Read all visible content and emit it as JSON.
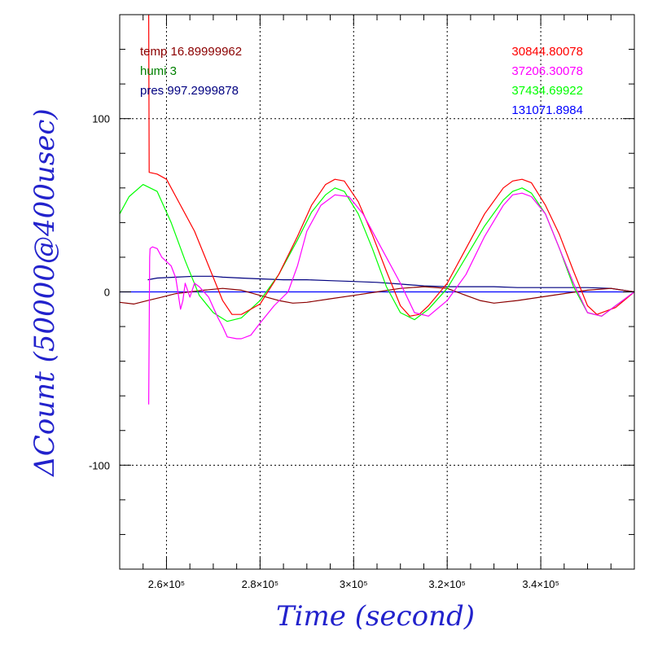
{
  "chart_data": {
    "type": "line",
    "xlabel": "Time (second)",
    "ylabel": "ΔCount (50000@400usec)",
    "xlim": [
      250000,
      360000
    ],
    "ylim": [
      -160,
      160
    ],
    "x_ticks": [
      260000,
      280000,
      300000,
      320000,
      340000
    ],
    "x_tick_labels": [
      "2.6×10⁵",
      "2.8×10⁵",
      "3×10⁵",
      "3.2×10⁵",
      "3.4×10⁵"
    ],
    "y_ticks": [
      -100,
      0,
      100
    ],
    "y_tick_labels": [
      "-100",
      "0",
      "100"
    ],
    "grid": true,
    "annotations_left": [
      {
        "text": "temp 16.89999962",
        "color": "#8b0000"
      },
      {
        "text": "humi 3",
        "color": "#008000"
      },
      {
        "text": "pres 997.2999878",
        "color": "#000080"
      }
    ],
    "annotations_right": [
      {
        "text": "30844.80078",
        "color": "#ff0000"
      },
      {
        "text": "37206.30078",
        "color": "#ff00ff"
      },
      {
        "text": "37434.69922",
        "color": "#00ff00"
      },
      {
        "text": "131071.8984",
        "color": "#0000ff"
      }
    ],
    "series": [
      {
        "color": "#0000ff",
        "x": [
          250000,
          255000,
          260000,
          265000,
          270000,
          275000,
          280000,
          285000,
          290000,
          295000,
          300000,
          305000,
          310000,
          315000,
          320000,
          325000,
          330000,
          335000,
          340000,
          345000,
          350000,
          355000,
          360000
        ],
        "y": [
          0,
          0,
          0,
          0,
          0,
          0,
          0,
          0,
          0,
          0,
          0,
          0,
          0,
          0,
          0,
          0,
          0,
          0,
          0,
          0,
          0,
          0,
          0
        ]
      },
      {
        "color": "#000080",
        "x": [
          256000,
          258000,
          262000,
          266000,
          270000,
          272000,
          276000,
          280000,
          285000,
          290000,
          295000,
          300000,
          305000,
          310000,
          315000,
          320000,
          325000,
          330000,
          335000,
          340000,
          345000,
          350000,
          355000,
          360000
        ],
        "y": [
          7,
          8,
          8.5,
          9,
          9,
          8.5,
          8,
          7.5,
          7,
          7,
          6.5,
          6,
          5.5,
          4.5,
          3.5,
          3,
          3,
          3,
          2.5,
          2.5,
          2.5,
          2.5,
          2,
          0
        ]
      },
      {
        "color": "#8b0000",
        "x": [
          250000,
          253000,
          256000,
          259000,
          262000,
          265000,
          268000,
          272000,
          276000,
          280000,
          284000,
          287000,
          290000,
          295000,
          300000,
          305000,
          310000,
          315000,
          320000,
          324000,
          327000,
          330000,
          335000,
          340000,
          345000,
          350000,
          355000,
          360000
        ],
        "y": [
          -6,
          -7,
          -5,
          -3,
          -1,
          0,
          1,
          2,
          1,
          -2,
          -5,
          -6.5,
          -6,
          -4,
          -2,
          0,
          2,
          3,
          2,
          -2,
          -5,
          -6.5,
          -5,
          -3,
          -1,
          1,
          2,
          0
        ]
      },
      {
        "color": "#00ff00",
        "x": [
          250000,
          252000,
          255000,
          258000,
          261000,
          264000,
          267000,
          270000,
          273000,
          276000,
          280000,
          284000,
          288000,
          291000,
          294000,
          296000,
          298000,
          301000,
          304000,
          307000,
          310000,
          313000,
          316000,
          320000,
          324000,
          328000,
          332000,
          334000,
          336000,
          338000,
          341000,
          344000,
          347000,
          350000,
          353000,
          356000,
          360000
        ],
        "y": [
          45,
          55,
          62,
          58,
          40,
          18,
          -2,
          -12,
          -17,
          -15,
          -5,
          10,
          30,
          46,
          56,
          60,
          58,
          45,
          25,
          3,
          -12,
          -16,
          -10,
          2,
          20,
          38,
          53,
          58,
          60,
          57,
          45,
          25,
          3,
          -12,
          -14,
          -8,
          0
        ]
      },
      {
        "color": "#ff0000",
        "x": [
          256200,
          256300,
          258000,
          260000,
          263000,
          266000,
          269000,
          272000,
          274000,
          276000,
          280000,
          284000,
          288000,
          291000,
          294000,
          296000,
          298000,
          301000,
          304000,
          307000,
          310000,
          312000,
          314000,
          316000,
          320000,
          324000,
          328000,
          332000,
          334000,
          336000,
          338000,
          341000,
          344000,
          347000,
          350000,
          352000,
          356000,
          360000
        ],
        "y": [
          160,
          69,
          68,
          65,
          50,
          35,
          15,
          -5,
          -13,
          -13,
          -7,
          10,
          32,
          50,
          62,
          65,
          64,
          52,
          33,
          12,
          -8,
          -14,
          -13,
          -8,
          5,
          25,
          45,
          60,
          64,
          65,
          63,
          50,
          33,
          12,
          -8,
          -13,
          -9,
          0
        ]
      },
      {
        "color": "#ff00ff",
        "x": [
          256200,
          256400,
          256500,
          257000,
          258000,
          259000,
          261000,
          262000,
          263000,
          263500,
          264000,
          265000,
          266000,
          267000,
          269000,
          271000,
          272000,
          273000,
          275000,
          276000,
          278000,
          280000,
          283000,
          286000,
          288000,
          290000,
          293000,
          296000,
          299000,
          302000,
          306000,
          310000,
          313000,
          316000,
          320000,
          324000,
          328000,
          332000,
          334000,
          336000,
          338000,
          341000,
          344000,
          347000,
          350000,
          353000,
          356000,
          360000
        ],
        "y": [
          -65,
          20,
          25,
          26,
          25,
          20,
          15,
          8,
          -10,
          -5,
          5,
          -3,
          5,
          3,
          -3,
          -15,
          -20,
          -26,
          -27,
          -27,
          -25,
          -18,
          -8,
          0,
          15,
          35,
          50,
          56,
          55,
          45,
          25,
          5,
          -12,
          -14,
          -5,
          10,
          32,
          50,
          56,
          57,
          55,
          45,
          25,
          5,
          -12,
          -14,
          -8,
          0
        ]
      }
    ]
  }
}
